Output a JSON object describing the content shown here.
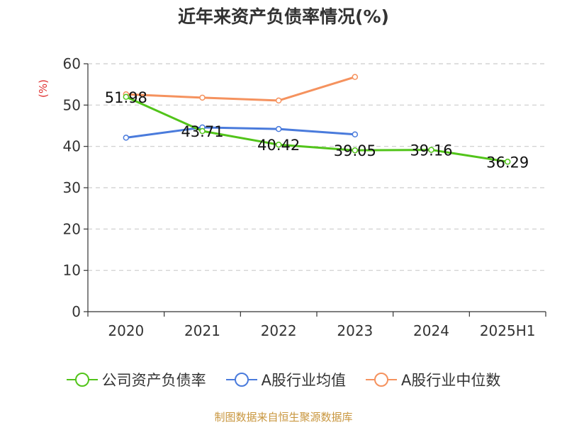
{
  "chart_data": {
    "type": "line",
    "title": "近年来资产负债率情况(%)",
    "ylabel": "(%)",
    "ylim": [
      0,
      60
    ],
    "yticks": [
      0,
      10,
      20,
      30,
      40,
      50,
      60
    ],
    "categories": [
      "2020",
      "2021",
      "2022",
      "2023",
      "2024",
      "2025H1"
    ],
    "grid": true,
    "legend_position": "bottom",
    "series": [
      {
        "name": "公司资产负债率",
        "color": "#52c41a",
        "values": [
          51.98,
          43.71,
          40.42,
          39.05,
          39.16,
          36.29
        ],
        "labels": [
          "51.98",
          "43.71",
          "40.42",
          "39.05",
          "39.16",
          "36.29"
        ]
      },
      {
        "name": "A股行业均值",
        "color": "#4a7bdc",
        "values": [
          42.1,
          44.6,
          44.2,
          42.9,
          null,
          null
        ]
      },
      {
        "name": "A股行业中位数",
        "color": "#f5925e",
        "values": [
          52.6,
          51.8,
          51.1,
          56.8,
          null,
          null
        ]
      }
    ]
  },
  "source": "制图数据来自恒生聚源数据库"
}
